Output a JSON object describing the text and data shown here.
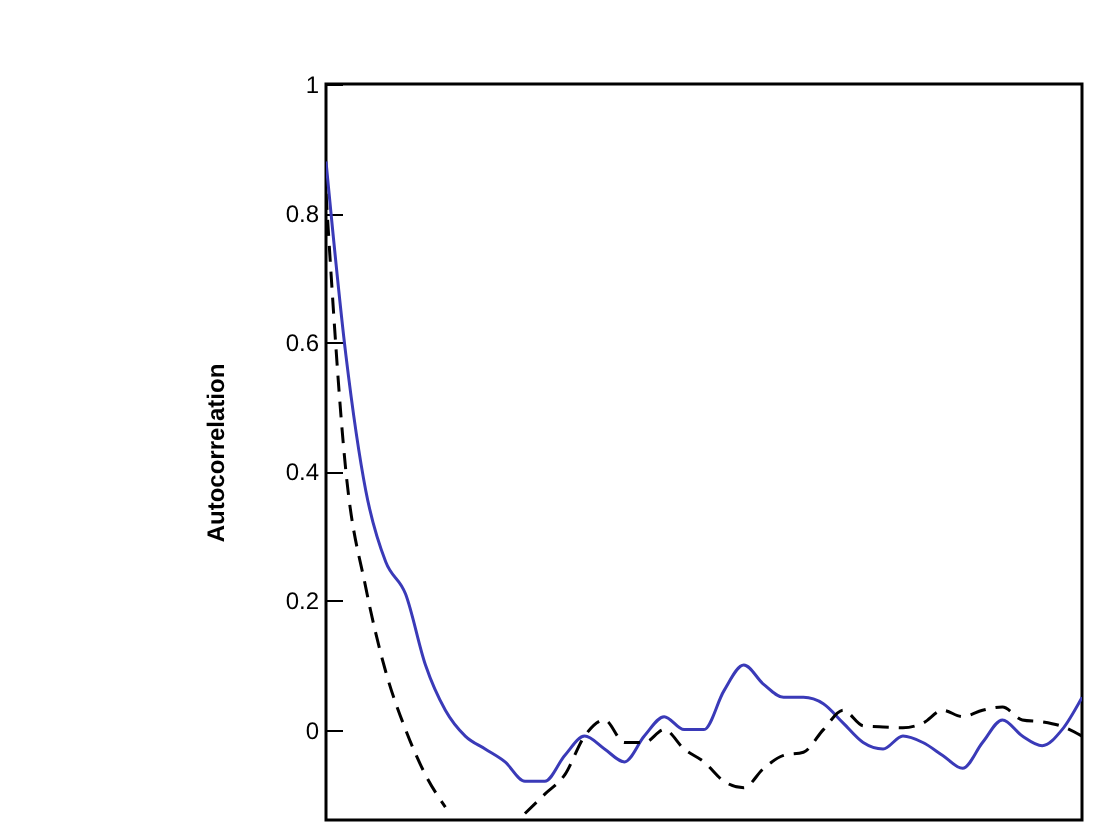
{
  "chart_data": {
    "type": "line",
    "ylabel": "Autocorrelation",
    "tick_labels": "y",
    "ylim": [
      -0.14,
      1
    ],
    "yticks": [
      0,
      0.2,
      0.4,
      0.6,
      0.8,
      1
    ],
    "categories": [
      null,
      null,
      null,
      null,
      null,
      null,
      null,
      null,
      null,
      null,
      null,
      null,
      null,
      null,
      null,
      null,
      null,
      null,
      null,
      null,
      null,
      null,
      null,
      null,
      null,
      null,
      null,
      null,
      null,
      null,
      null,
      null,
      null,
      null,
      null,
      null,
      null,
      null,
      null
    ],
    "series": [
      {
        "color": "#3a3ab8",
        "line_style": "solid",
        "values": [
          0.88,
          0.58,
          0.37,
          0.26,
          0.21,
          0.1,
          0.03,
          -0.01,
          -0.03,
          -0.05,
          -0.08,
          -0.08,
          -0.04,
          -0.01,
          -0.03,
          -0.05,
          -0.01,
          0.02,
          0.0,
          0.0,
          0.06,
          0.1,
          0.07,
          0.05,
          0.05,
          0.04,
          0.01,
          -0.02,
          -0.03,
          -0.01,
          -0.02,
          -0.04,
          -0.06,
          -0.02,
          0.015,
          -0.01,
          -0.025,
          0.0,
          0.05
        ]
      },
      {
        "color": "#000000",
        "line_style": "dashed",
        "values": [
          0.83,
          0.4,
          0.22,
          0.09,
          0.0,
          -0.07,
          -0.12,
          null,
          null,
          null,
          -0.13,
          -0.1,
          -0.07,
          -0.01,
          0.015,
          -0.02,
          -0.02,
          0.0,
          -0.03,
          -0.05,
          -0.08,
          -0.09,
          -0.06,
          -0.04,
          -0.035,
          0.0,
          0.03,
          0.006,
          0.004,
          0.003,
          0.01,
          0.03,
          0.02,
          0.03,
          0.035,
          0.015,
          0.012,
          0.005,
          -0.01
        ]
      }
    ]
  }
}
